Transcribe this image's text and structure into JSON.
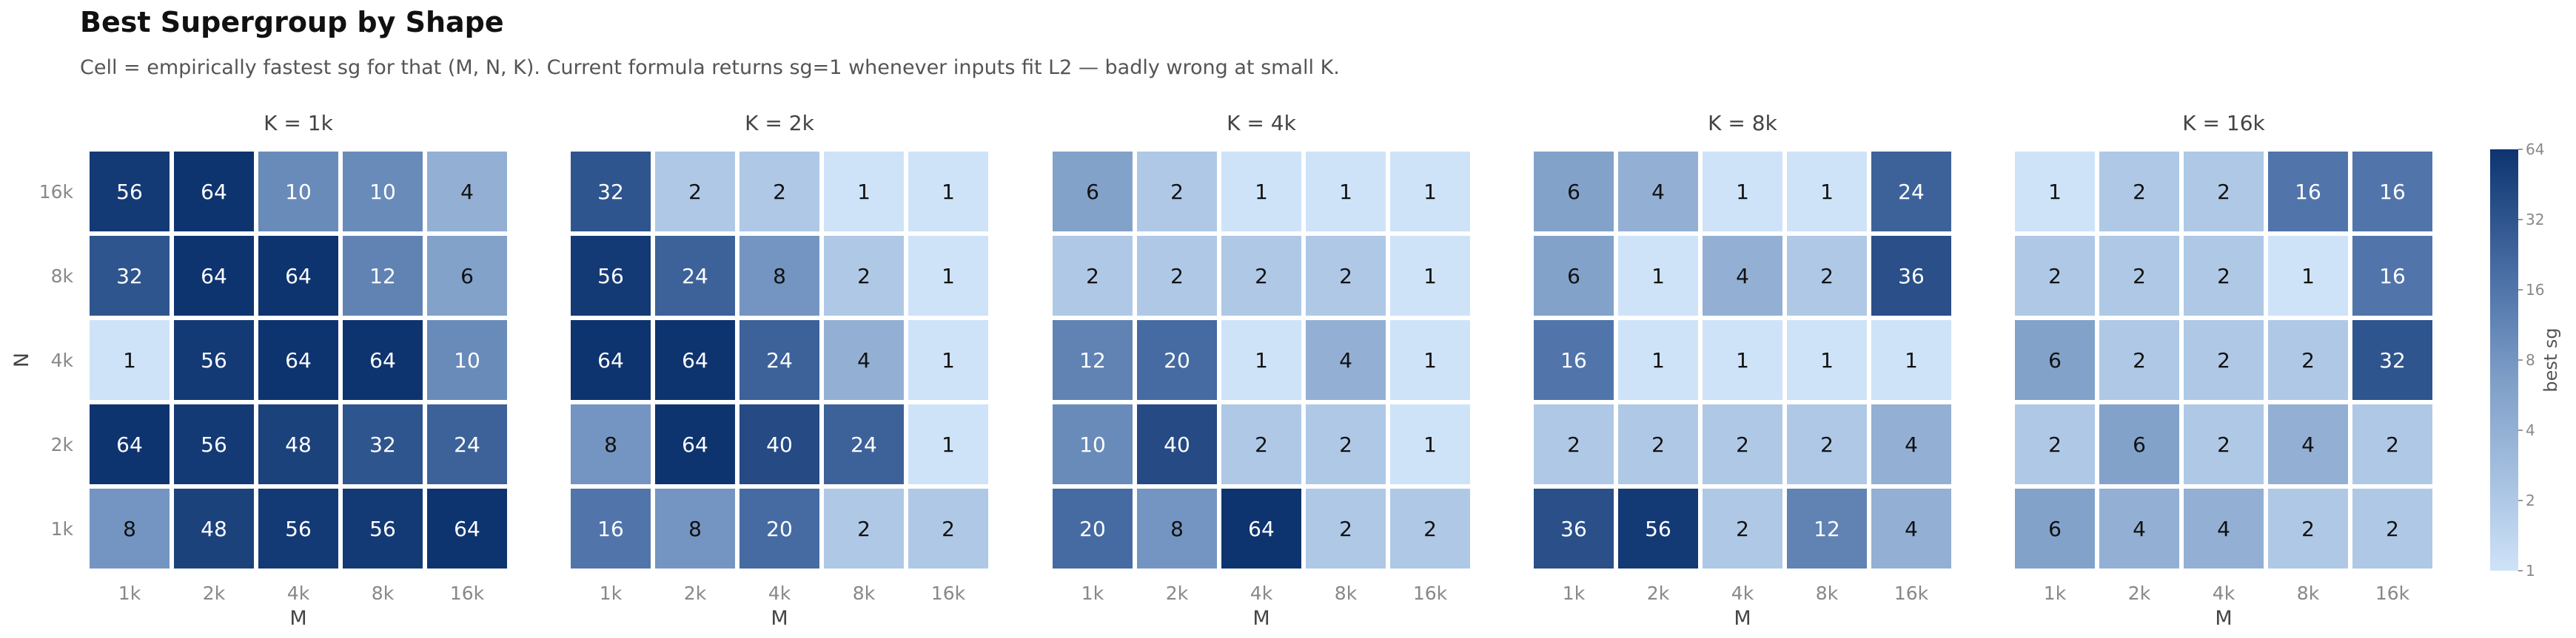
{
  "title": "Best Supergroup by Shape",
  "subtitle": "Cell = empirically fastest sg for that (M, N, K). Current formula returns sg=1 whenever inputs fit L2 — badly wrong at small K.",
  "chart_data": {
    "type": "heatmap",
    "x_tick_labels": [
      "1k",
      "2k",
      "4k",
      "8k",
      "16k"
    ],
    "y_tick_labels": [
      "1k",
      "2k",
      "4k",
      "8k",
      "16k"
    ],
    "xlabel": "M",
    "ylabel": "N",
    "colorbar": {
      "label": "best sg",
      "scale": "log2",
      "range": [
        1,
        64
      ],
      "ticks": [
        "1",
        "2",
        "4",
        "8",
        "16",
        "32",
        "64"
      ],
      "color_low": "#cfe3f8",
      "color_high": "#0e3470"
    },
    "panels": [
      {
        "title": "K = 1k",
        "rows": [
          {
            "n": "16k",
            "values": [
              56,
              64,
              10,
              10,
              4
            ]
          },
          {
            "n": "8k",
            "values": [
              32,
              64,
              64,
              12,
              6
            ]
          },
          {
            "n": "4k",
            "values": [
              1,
              56,
              64,
              64,
              10
            ]
          },
          {
            "n": "2k",
            "values": [
              64,
              56,
              48,
              32,
              24
            ]
          },
          {
            "n": "1k",
            "values": [
              8,
              48,
              56,
              56,
              64
            ]
          }
        ]
      },
      {
        "title": "K = 2k",
        "rows": [
          {
            "n": "16k",
            "values": [
              32,
              2,
              2,
              1,
              1
            ]
          },
          {
            "n": "8k",
            "values": [
              56,
              24,
              8,
              2,
              1
            ]
          },
          {
            "n": "4k",
            "values": [
              64,
              64,
              24,
              4,
              1
            ]
          },
          {
            "n": "2k",
            "values": [
              8,
              64,
              40,
              24,
              1
            ]
          },
          {
            "n": "1k",
            "values": [
              16,
              8,
              20,
              2,
              2
            ]
          }
        ]
      },
      {
        "title": "K = 4k",
        "rows": [
          {
            "n": "16k",
            "values": [
              6,
              2,
              1,
              1,
              1
            ]
          },
          {
            "n": "8k",
            "values": [
              2,
              2,
              2,
              2,
              1
            ]
          },
          {
            "n": "4k",
            "values": [
              12,
              20,
              1,
              4,
              1
            ]
          },
          {
            "n": "2k",
            "values": [
              10,
              40,
              2,
              2,
              1
            ]
          },
          {
            "n": "1k",
            "values": [
              20,
              8,
              64,
              2,
              2
            ]
          }
        ]
      },
      {
        "title": "K = 8k",
        "rows": [
          {
            "n": "16k",
            "values": [
              6,
              4,
              1,
              1,
              24
            ]
          },
          {
            "n": "8k",
            "values": [
              6,
              1,
              4,
              2,
              36
            ]
          },
          {
            "n": "4k",
            "values": [
              16,
              1,
              1,
              1,
              1
            ]
          },
          {
            "n": "2k",
            "values": [
              2,
              2,
              2,
              2,
              4
            ]
          },
          {
            "n": "1k",
            "values": [
              36,
              56,
              2,
              12,
              4
            ]
          }
        ]
      },
      {
        "title": "K = 16k",
        "rows": [
          {
            "n": "16k",
            "values": [
              1,
              2,
              2,
              16,
              16
            ]
          },
          {
            "n": "8k",
            "values": [
              2,
              2,
              2,
              1,
              16
            ]
          },
          {
            "n": "4k",
            "values": [
              6,
              2,
              2,
              2,
              32
            ]
          },
          {
            "n": "2k",
            "values": [
              2,
              6,
              2,
              4,
              2
            ]
          },
          {
            "n": "1k",
            "values": [
              6,
              4,
              4,
              2,
              2
            ]
          }
        ]
      }
    ]
  }
}
